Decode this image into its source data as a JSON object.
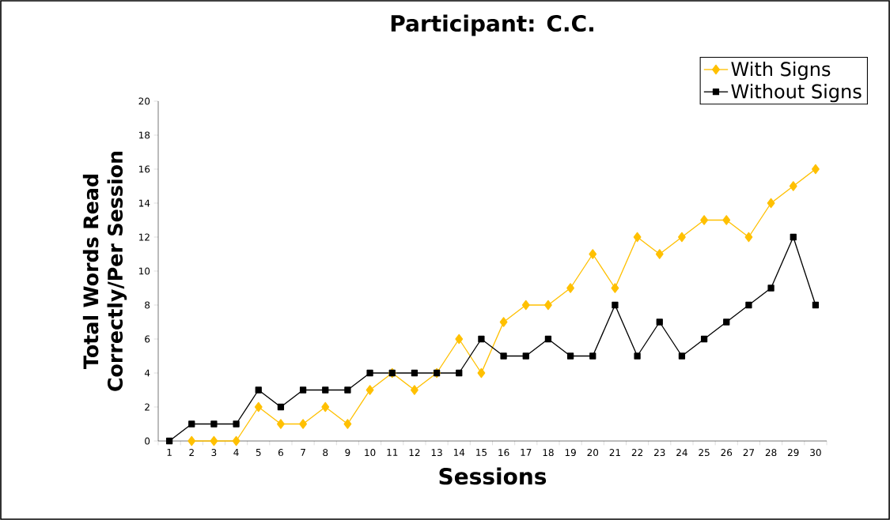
{
  "chart_data": {
    "type": "line",
    "title": "Participant: C.C.",
    "xlabel": "Sessions",
    "ylabel": "Total Words Read Correctly/Per Session",
    "categories": [
      "1",
      "2",
      "3",
      "4",
      "5",
      "6",
      "7",
      "8",
      "9",
      "10",
      "11",
      "12",
      "13",
      "14",
      "15",
      "16",
      "17",
      "18",
      "19",
      "20",
      "21",
      "22",
      "23",
      "24",
      "25",
      "26",
      "27",
      "28",
      "29",
      "30"
    ],
    "series": [
      {
        "name": "With Signs",
        "color": "#ffc000",
        "marker": "diamond",
        "values": [
          null,
          0,
          0,
          0,
          2,
          1,
          1,
          2,
          1,
          3,
          4,
          3,
          4,
          6,
          4,
          7,
          8,
          8,
          9,
          11,
          9,
          12,
          11,
          12,
          13,
          13,
          12,
          14,
          15,
          16
        ]
      },
      {
        "name": "Without Signs",
        "color": "#000000",
        "marker": "square",
        "values": [
          0,
          1,
          1,
          1,
          3,
          2,
          3,
          3,
          3,
          4,
          4,
          4,
          4,
          4,
          6,
          5,
          5,
          6,
          5,
          5,
          8,
          5,
          7,
          5,
          6,
          7,
          8,
          9,
          12,
          8
        ]
      }
    ],
    "ylim": [
      0,
      20
    ],
    "yticks": [
      0,
      2,
      4,
      6,
      8,
      10,
      12,
      14,
      16,
      18,
      20
    ],
    "legend": "top right",
    "line_style": "solid"
  }
}
